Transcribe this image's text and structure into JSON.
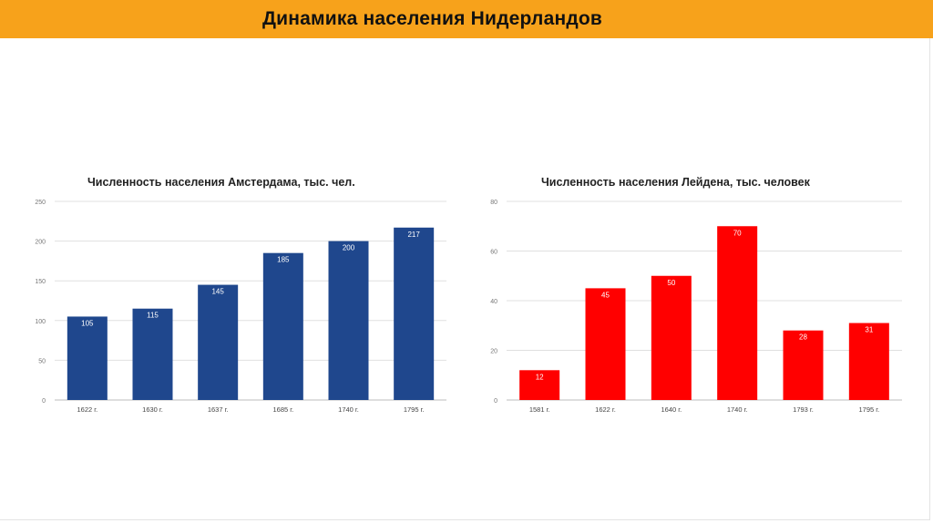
{
  "header": {
    "title": "Динамика населения Нидерландов"
  },
  "colors": {
    "header_bg": "#f7a21b",
    "amsterdam_bar": "#1f478d",
    "leiden_bar": "#ff0000",
    "grid": "#e0e0e0",
    "axis_text": "#666666"
  },
  "chart_data": [
    {
      "type": "bar",
      "title": "Численность населения Амстердама, тыс. чел.",
      "categories": [
        "1622 г.",
        "1630 г.",
        "1637 г.",
        "1685 г.",
        "1740 г.",
        "1795 г."
      ],
      "values": [
        105,
        115,
        145,
        185,
        200,
        217
      ],
      "data_labels": [
        "105",
        "115",
        "145",
        "185",
        "200",
        "217"
      ],
      "yticks": [
        "0",
        "50",
        "100",
        "150",
        "200",
        "250"
      ],
      "ylim": [
        0,
        250
      ],
      "grid": true,
      "legend": "none"
    },
    {
      "type": "bar",
      "title": "Численность населения Лейдена, тыс. человек",
      "categories": [
        "1581 г.",
        "1622 г.",
        "1640 г.",
        "1740 г.",
        "1793 г.",
        "1795 г."
      ],
      "values": [
        12,
        45,
        50,
        70,
        28,
        31
      ],
      "data_labels": [
        "12",
        "45",
        "50",
        "70",
        "28",
        "31"
      ],
      "yticks": [
        "0",
        "20",
        "40",
        "60",
        "80"
      ],
      "ylim": [
        0,
        80
      ],
      "grid": true,
      "legend": "none"
    }
  ]
}
